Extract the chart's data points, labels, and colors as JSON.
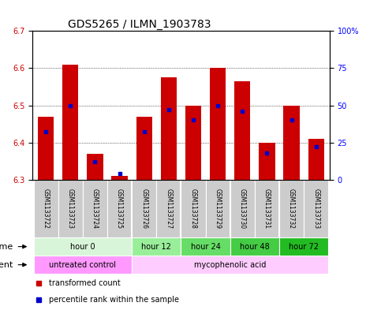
{
  "title": "GDS5265 / ILMN_1903783",
  "samples": [
    "GSM1133722",
    "GSM1133723",
    "GSM1133724",
    "GSM1133725",
    "GSM1133726",
    "GSM1133727",
    "GSM1133728",
    "GSM1133729",
    "GSM1133730",
    "GSM1133731",
    "GSM1133732",
    "GSM1133733"
  ],
  "transformed_counts": [
    6.47,
    6.61,
    6.37,
    6.31,
    6.47,
    6.575,
    6.5,
    6.6,
    6.565,
    6.4,
    6.5,
    6.41
  ],
  "percentile_ranks": [
    32,
    50,
    12,
    4,
    32,
    47,
    40,
    50,
    46,
    18,
    40,
    22
  ],
  "ylim_left": [
    6.3,
    6.7
  ],
  "ylim_right": [
    0,
    100
  ],
  "yticks_left": [
    6.3,
    6.4,
    6.5,
    6.6,
    6.7
  ],
  "yticks_right": [
    0,
    25,
    50,
    75,
    100
  ],
  "ytick_labels_right": [
    "0",
    "25",
    "50",
    "75",
    "100%"
  ],
  "bar_color": "#cc0000",
  "dot_color": "#0000cc",
  "bar_base": 6.3,
  "bar_width": 0.65,
  "time_groups": [
    {
      "label": "hour 0",
      "start": 0,
      "end": 3,
      "color": "#d9f5d9"
    },
    {
      "label": "hour 12",
      "start": 4,
      "end": 5,
      "color": "#99ee99"
    },
    {
      "label": "hour 24",
      "start": 6,
      "end": 7,
      "color": "#66dd66"
    },
    {
      "label": "hour 48",
      "start": 8,
      "end": 9,
      "color": "#44cc44"
    },
    {
      "label": "hour 72",
      "start": 10,
      "end": 11,
      "color": "#22bb22"
    }
  ],
  "agent_groups": [
    {
      "label": "untreated control",
      "start": 0,
      "end": 3,
      "color": "#ff99ff"
    },
    {
      "label": "mycophenolic acid",
      "start": 4,
      "end": 11,
      "color": "#ffccff"
    }
  ],
  "legend_items": [
    {
      "label": "transformed count",
      "color": "#cc0000"
    },
    {
      "label": "percentile rank within the sample",
      "color": "#0000cc"
    }
  ],
  "left_tick_color": "#cc0000",
  "right_tick_color": "#0000ff",
  "bg_color": "#ffffff",
  "plot_bg_color": "#ffffff",
  "sample_bg_color": "#cccccc",
  "title_fontsize": 10,
  "tick_fontsize": 7,
  "sample_fontsize": 5.5,
  "row_fontsize": 8,
  "legend_fontsize": 7
}
